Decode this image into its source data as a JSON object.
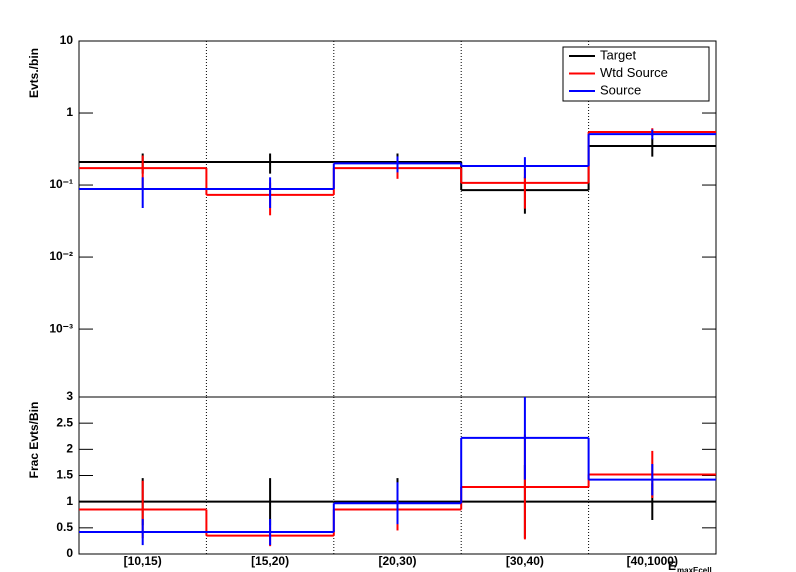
{
  "chart_data": [
    {
      "type": "step",
      "y_label": "Evts./bin",
      "log_y": true,
      "ylim": [
        0.000114,
        10
      ],
      "yticks": [
        {
          "value": 0.001,
          "label": "10⁻³"
        },
        {
          "value": 0.01,
          "label": "10⁻²"
        },
        {
          "value": 0.1,
          "label": "10⁻¹"
        },
        1,
        10
      ],
      "legend": "top-right",
      "series": [
        {
          "name": "Target",
          "color": "#000000",
          "values": [
            0.209,
            0.209,
            0.209,
            0.085,
            0.348
          ],
          "errors": [
            0.065,
            0.065,
            0.065,
            0.045,
            0.1
          ]
        },
        {
          "name": "Wtd Source",
          "color": "#ff0000",
          "values": [
            0.172,
            0.073,
            0.172,
            0.107,
            0.545
          ],
          "errors": [
            0.085,
            0.035,
            0.05,
            0.06,
            0.07
          ]
        },
        {
          "name": "Source",
          "color": "#0000ff",
          "values": [
            0.088,
            0.088,
            0.2,
            0.184,
            0.51
          ],
          "errors": [
            0.04,
            0.04,
            0.05,
            0.06,
            0.08
          ]
        }
      ]
    },
    {
      "type": "step",
      "y_label": "Frac Evts/Bin",
      "x_label": "E",
      "x_label_sub": "maxEcell",
      "categories": [
        "[10,15)",
        "[15,20)",
        "[20,30)",
        "[30,40)",
        "[40,1000)"
      ],
      "ylim": [
        0,
        3
      ],
      "yticks": [
        0,
        0.5,
        1,
        1.5,
        2,
        2.5,
        3
      ],
      "series": [
        {
          "color": "#000000",
          "values": [
            1,
            1,
            1,
            1,
            1
          ],
          "errors": [
            0.45,
            0.45,
            0.45,
            0.7,
            0.35
          ]
        },
        {
          "color": "#ff0000",
          "values": [
            0.85,
            0.35,
            0.85,
            1.28,
            1.52
          ],
          "errors": [
            0.55,
            0.2,
            0.4,
            1,
            0.45
          ]
        },
        {
          "color": "#0000ff",
          "values": [
            0.42,
            0.42,
            0.97,
            2.22,
            1.42
          ],
          "errors": [
            0.25,
            0.25,
            0.4,
            0.8,
            0.3
          ]
        }
      ]
    }
  ]
}
